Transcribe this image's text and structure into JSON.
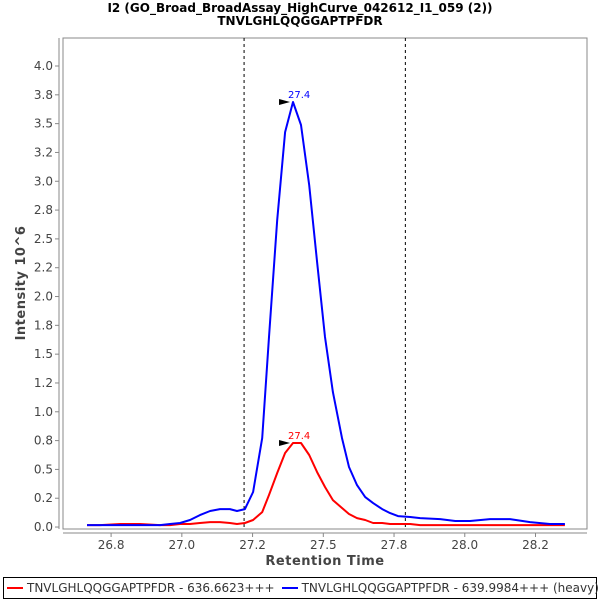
{
  "chart_data": {
    "type": "line",
    "title": "I2 (GO_Broad_BroadAssay_HighCurve_042612_I1_059 (2))",
    "subtitle": "TNVLGHLQQGGAPTPFDR",
    "xlabel": "Retention Time",
    "ylabel": "Intensity 10^6",
    "xlim": [
      26.58,
      28.432
    ],
    "ylim": [
      -0.017,
      4.243
    ],
    "grid": false,
    "legend_placement": "bottom",
    "x_ticks": [
      {
        "value": 26.75,
        "label": "26.8"
      },
      {
        "value": 27.0,
        "label": "27.0"
      },
      {
        "value": 27.25,
        "label": "27.2"
      },
      {
        "value": 27.5,
        "label": "27.5"
      },
      {
        "value": 27.75,
        "label": "27.8"
      },
      {
        "value": 28.0,
        "label": "28.0"
      },
      {
        "value": 28.25,
        "label": "28.2"
      }
    ],
    "y_ticks": [
      {
        "value": 0.0,
        "label": "0.0"
      },
      {
        "value": 0.25,
        "label": "0.2"
      },
      {
        "value": 0.5,
        "label": "0.5"
      },
      {
        "value": 0.75,
        "label": "0.8"
      },
      {
        "value": 1.0,
        "label": "1.0"
      },
      {
        "value": 1.25,
        "label": "1.2"
      },
      {
        "value": 1.5,
        "label": "1.5"
      },
      {
        "value": 1.75,
        "label": "1.8"
      },
      {
        "value": 2.0,
        "label": "2.0"
      },
      {
        "value": 2.25,
        "label": "2.2"
      },
      {
        "value": 2.5,
        "label": "2.5"
      },
      {
        "value": 2.75,
        "label": "2.8"
      },
      {
        "value": 3.0,
        "label": "3.0"
      },
      {
        "value": 3.25,
        "label": "3.2"
      },
      {
        "value": 3.5,
        "label": "3.5"
      },
      {
        "value": 3.75,
        "label": "3.8"
      },
      {
        "value": 4.0,
        "label": "4.0"
      }
    ],
    "boundaries": [
      27.22,
      27.79
    ],
    "x": [
      26.665,
      26.711,
      26.782,
      26.852,
      26.923,
      26.958,
      26.994,
      27.029,
      27.064,
      27.1,
      27.135,
      27.17,
      27.195,
      27.223,
      27.252,
      27.284,
      27.308,
      27.337,
      27.365,
      27.393,
      27.421,
      27.45,
      27.478,
      27.506,
      27.534,
      27.566,
      27.591,
      27.619,
      27.648,
      27.676,
      27.708,
      27.736,
      27.764,
      27.807,
      27.842,
      27.913,
      27.966,
      28.019,
      28.089,
      28.16,
      28.231,
      28.301,
      28.354
    ],
    "series": [
      {
        "name": "TNVLGHLQQGGAPTPFDR - 636.6623+++",
        "color": "#ff0000",
        "peak": {
          "x": 27.393,
          "y": 0.729,
          "label": "27.4"
        },
        "values": [
          0.017,
          0.017,
          0.026,
          0.026,
          0.017,
          0.017,
          0.026,
          0.026,
          0.035,
          0.043,
          0.043,
          0.035,
          0.026,
          0.035,
          0.061,
          0.13,
          0.278,
          0.469,
          0.642,
          0.729,
          0.729,
          0.625,
          0.477,
          0.347,
          0.234,
          0.165,
          0.113,
          0.078,
          0.061,
          0.035,
          0.035,
          0.026,
          0.026,
          0.026,
          0.017,
          0.017,
          0.017,
          0.017,
          0.017,
          0.017,
          0.017,
          0.017,
          0.017
        ]
      },
      {
        "name": "TNVLGHLQQGGAPTPFDR - 639.9984+++ (heavy)",
        "color": "#0000ff",
        "peak": {
          "x": 27.393,
          "y": 3.688,
          "label": "27.4"
        },
        "values": [
          0.017,
          0.017,
          0.017,
          0.017,
          0.017,
          0.026,
          0.035,
          0.061,
          0.104,
          0.139,
          0.156,
          0.156,
          0.139,
          0.156,
          0.304,
          0.772,
          1.649,
          2.664,
          3.427,
          3.688,
          3.488,
          2.967,
          2.299,
          1.649,
          1.171,
          0.772,
          0.521,
          0.364,
          0.26,
          0.208,
          0.156,
          0.121,
          0.095,
          0.087,
          0.078,
          0.069,
          0.052,
          0.052,
          0.069,
          0.069,
          0.043,
          0.026,
          0.026
        ]
      }
    ]
  }
}
